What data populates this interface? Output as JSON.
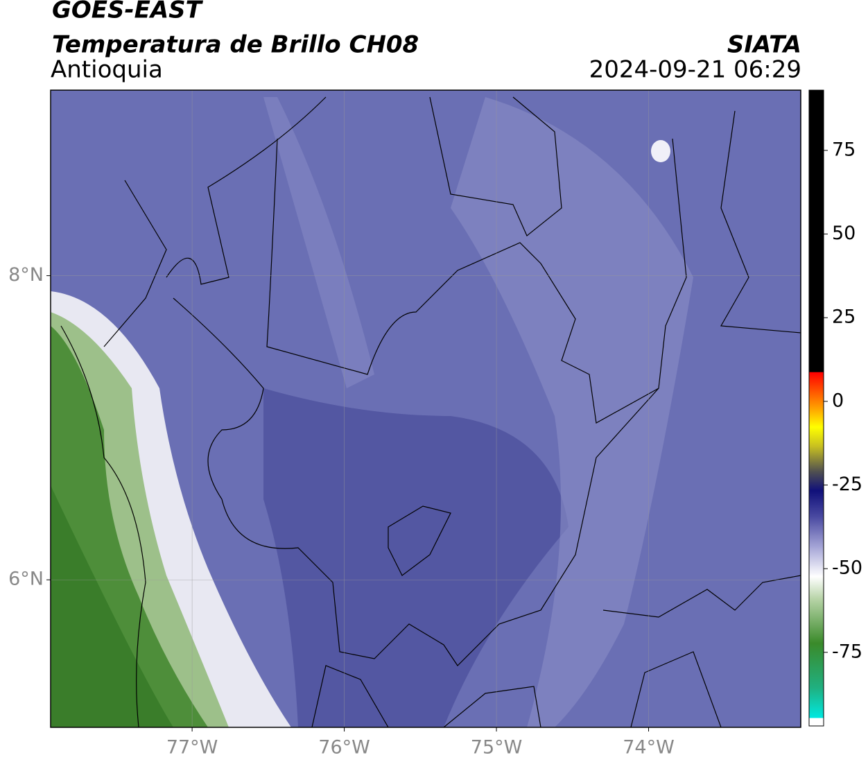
{
  "header": {
    "title": "GOES-EAST",
    "subtitle": "Temperatura de Brillo CH08",
    "region": "Antioquia",
    "source": "SIATA",
    "datetime": "2024-09-21 06:29"
  },
  "map": {
    "xlim": [
      -77.93,
      -73.0
    ],
    "ylim": [
      5.03,
      9.22
    ],
    "xticks": [
      {
        "value": -77,
        "label": "77°W"
      },
      {
        "value": -76,
        "label": "76°W"
      },
      {
        "value": -75,
        "label": "75°W"
      },
      {
        "value": -74,
        "label": "74°W"
      }
    ],
    "yticks": [
      {
        "value": 8,
        "label": "8°N"
      },
      {
        "value": 6,
        "label": "6°N"
      }
    ],
    "grid": true
  },
  "colorbar": {
    "lim": [
      -97,
      93
    ],
    "ticks": [
      75,
      50,
      25,
      0,
      -25,
      -50,
      -75
    ]
  }
}
